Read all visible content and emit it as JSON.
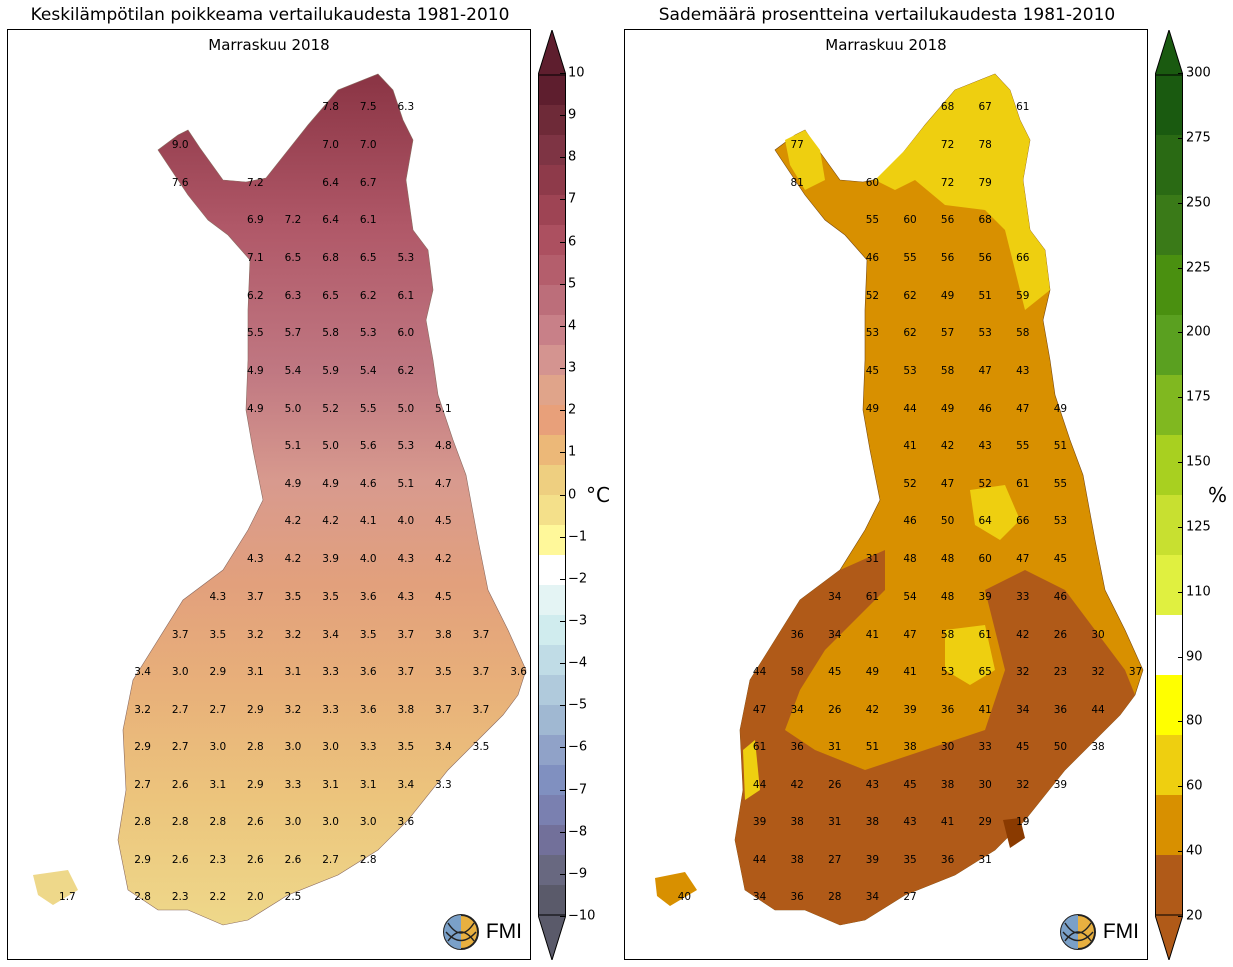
{
  "panels": [
    {
      "id": "temp",
      "title": "Keskilämpötilan poikkeama vertailukaudesta 1981-2010",
      "subtitle": "Marraskuu 2018",
      "logo_text": "FMI",
      "colorbar": {
        "unit": "°C",
        "ticks": [
          "10",
          "9",
          "8",
          "7",
          "6",
          "5",
          "4",
          "3",
          "2",
          "1",
          "0",
          "−1",
          "−2",
          "−3",
          "−4",
          "−5",
          "−6",
          "−7",
          "−8",
          "−9",
          "−10"
        ],
        "colors": {
          "warm_top": "#5e1e2e",
          "warm_mid": "#b85a6a",
          "warm_low": "#e8a07a",
          "yellow": "#fff89a",
          "white": "#ffffff",
          "cool_low": "#d8f0f0",
          "cool_mid": "#8090c0",
          "cool_bottom": "#5a5a6a"
        }
      },
      "values": [
        {
          "t": "7.8",
          "c": 1
        },
        {
          "t": "7.5",
          "c": 2
        },
        {
          "t": "6.3",
          "c": 3
        },
        {
          "t": "9.0",
          "c": -3
        },
        {
          "t": "7.0",
          "c": 1
        },
        {
          "t": "7.0",
          "c": 2
        },
        {
          "t": "7.6",
          "c": -3
        },
        {
          "t": "7.2",
          "c": -1
        },
        {
          "t": "6.4",
          "c": 1
        },
        {
          "t": "6.7",
          "c": 2
        },
        {
          "t": "6.9",
          "c": -1
        },
        {
          "t": "7.2",
          "c": 0
        },
        {
          "t": "6.4",
          "c": 1
        },
        {
          "t": "6.1",
          "c": 2
        },
        {
          "t": "7.1",
          "c": -1
        },
        {
          "t": "6.5",
          "c": 0
        },
        {
          "t": "6.8",
          "c": 1
        },
        {
          "t": "6.5",
          "c": 2
        },
        {
          "t": "5.3",
          "c": 3
        },
        {
          "t": "6.2",
          "c": -1
        },
        {
          "t": "6.3",
          "c": 0
        },
        {
          "t": "6.5",
          "c": 1
        },
        {
          "t": "6.2",
          "c": 2
        },
        {
          "t": "6.1",
          "c": 3
        },
        {
          "t": "5.5",
          "c": -1
        },
        {
          "t": "5.7",
          "c": 0
        },
        {
          "t": "5.8",
          "c": 1
        },
        {
          "t": "5.3",
          "c": 2
        },
        {
          "t": "6.0",
          "c": 3
        },
        {
          "t": "4.9",
          "c": -1
        },
        {
          "t": "5.4",
          "c": 0
        },
        {
          "t": "5.9",
          "c": 1
        },
        {
          "t": "5.4",
          "c": 2
        },
        {
          "t": "6.2",
          "c": 3
        },
        {
          "t": "4.9",
          "c": -1
        },
        {
          "t": "5.0",
          "c": 0
        },
        {
          "t": "5.2",
          "c": 1
        },
        {
          "t": "5.5",
          "c": 2
        },
        {
          "t": "5.0",
          "c": 3
        },
        {
          "t": "5.1",
          "c": 4
        },
        {
          "t": "5.1",
          "c": 0
        },
        {
          "t": "5.0",
          "c": 1
        },
        {
          "t": "5.6",
          "c": 2
        },
        {
          "t": "5.3",
          "c": 3
        },
        {
          "t": "4.8",
          "c": 4
        },
        {
          "t": "4.9",
          "c": 0
        },
        {
          "t": "4.9",
          "c": 1
        },
        {
          "t": "4.6",
          "c": 2
        },
        {
          "t": "5.1",
          "c": 3
        },
        {
          "t": "4.7",
          "c": 4
        },
        {
          "t": "4.2",
          "c": 0
        },
        {
          "t": "4.2",
          "c": 1
        },
        {
          "t": "4.1",
          "c": 2
        },
        {
          "t": "4.0",
          "c": 3
        },
        {
          "t": "4.5",
          "c": 4
        },
        {
          "t": "4.3",
          "c": -1
        },
        {
          "t": "4.2",
          "c": 0
        },
        {
          "t": "3.9",
          "c": 1
        },
        {
          "t": "4.0",
          "c": 2
        },
        {
          "t": "4.3",
          "c": 3
        },
        {
          "t": "4.2",
          "c": 4
        },
        {
          "t": "4.3",
          "c": -2
        },
        {
          "t": "3.7",
          "c": -1
        },
        {
          "t": "3.5",
          "c": 0
        },
        {
          "t": "3.5",
          "c": 1
        },
        {
          "t": "3.6",
          "c": 2
        },
        {
          "t": "4.3",
          "c": 3
        },
        {
          "t": "4.5",
          "c": 4
        },
        {
          "t": "3.7",
          "c": -3
        },
        {
          "t": "3.5",
          "c": -2
        },
        {
          "t": "3.2",
          "c": -1
        },
        {
          "t": "3.2",
          "c": 0
        },
        {
          "t": "3.4",
          "c": 1
        },
        {
          "t": "3.5",
          "c": 2
        },
        {
          "t": "3.7",
          "c": 3
        },
        {
          "t": "3.8",
          "c": 4
        },
        {
          "t": "3.7",
          "c": 5
        },
        {
          "t": "3.4",
          "c": -4
        },
        {
          "t": "3.0",
          "c": -3
        },
        {
          "t": "2.9",
          "c": -2
        },
        {
          "t": "3.1",
          "c": -1
        },
        {
          "t": "3.1",
          "c": 0
        },
        {
          "t": "3.3",
          "c": 1
        },
        {
          "t": "3.6",
          "c": 2
        },
        {
          "t": "3.7",
          "c": 3
        },
        {
          "t": "3.5",
          "c": 4
        },
        {
          "t": "3.7",
          "c": 5
        },
        {
          "t": "3.6",
          "c": 6
        },
        {
          "t": "3.2",
          "c": -4
        },
        {
          "t": "2.7",
          "c": -3
        },
        {
          "t": "2.7",
          "c": -2
        },
        {
          "t": "2.9",
          "c": -1
        },
        {
          "t": "3.2",
          "c": 0
        },
        {
          "t": "3.3",
          "c": 1
        },
        {
          "t": "3.6",
          "c": 2
        },
        {
          "t": "3.8",
          "c": 3
        },
        {
          "t": "3.7",
          "c": 4
        },
        {
          "t": "3.7",
          "c": 5
        },
        {
          "t": "2.9",
          "c": -4
        },
        {
          "t": "2.7",
          "c": -3
        },
        {
          "t": "3.0",
          "c": -2
        },
        {
          "t": "2.8",
          "c": -1
        },
        {
          "t": "3.0",
          "c": 0
        },
        {
          "t": "3.0",
          "c": 1
        },
        {
          "t": "3.3",
          "c": 2
        },
        {
          "t": "3.5",
          "c": 3
        },
        {
          "t": "3.4",
          "c": 4
        },
        {
          "t": "3.5",
          "c": 5
        },
        {
          "t": "2.7",
          "c": -4
        },
        {
          "t": "2.6",
          "c": -3
        },
        {
          "t": "3.1",
          "c": -2
        },
        {
          "t": "2.9",
          "c": -1
        },
        {
          "t": "3.3",
          "c": 0
        },
        {
          "t": "3.1",
          "c": 1
        },
        {
          "t": "3.1",
          "c": 2
        },
        {
          "t": "3.4",
          "c": 3
        },
        {
          "t": "3.3",
          "c": 4
        },
        {
          "t": "2.8",
          "c": -4
        },
        {
          "t": "2.8",
          "c": -3
        },
        {
          "t": "2.8",
          "c": -2
        },
        {
          "t": "2.6",
          "c": -1
        },
        {
          "t": "3.0",
          "c": 0
        },
        {
          "t": "3.0",
          "c": 1
        },
        {
          "t": "3.0",
          "c": 2
        },
        {
          "t": "3.6",
          "c": 3
        },
        {
          "t": "2.9",
          "c": -4
        },
        {
          "t": "2.6",
          "c": -3
        },
        {
          "t": "2.3",
          "c": -2
        },
        {
          "t": "2.6",
          "c": -1
        },
        {
          "t": "2.6",
          "c": 0
        },
        {
          "t": "2.7",
          "c": 1
        },
        {
          "t": "2.8",
          "c": 2
        },
        {
          "t": "1.7",
          "c": -6
        },
        {
          "t": "2.8",
          "c": -4
        },
        {
          "t": "2.3",
          "c": -3
        },
        {
          "t": "2.2",
          "c": -2
        },
        {
          "t": "2.0",
          "c": -1
        },
        {
          "t": "2.5",
          "c": 0
        }
      ]
    },
    {
      "id": "precip",
      "title": "Sademäärä prosentteina vertailukaudesta 1981-2010",
      "subtitle": "Marraskuu 2018",
      "logo_text": "FMI",
      "colorbar": {
        "unit": "%",
        "ticks": [
          "300",
          "275",
          "250",
          "225",
          "200",
          "175",
          "150",
          "125",
          "110",
          "90",
          "80",
          "60",
          "40",
          "20"
        ],
        "colors": {
          "dark_green": "#1a5a10",
          "mid_green": "#5aa020",
          "yellow_green": "#e0f040",
          "white": "#ffffff",
          "yellow": "#ffff00",
          "gold": "#eecf10",
          "orange": "#d89000",
          "brown": "#b05a18",
          "dark_brown": "#8a3a00"
        }
      },
      "values": [
        {
          "t": "68",
          "c": 1
        },
        {
          "t": "67",
          "c": 2
        },
        {
          "t": "61",
          "c": 3
        },
        {
          "t": "77",
          "c": -3
        },
        {
          "t": "72",
          "c": 1
        },
        {
          "t": "78",
          "c": 2
        },
        {
          "t": "81",
          "c": -3
        },
        {
          "t": "60",
          "c": -1
        },
        {
          "t": "72",
          "c": 1
        },
        {
          "t": "79",
          "c": 2
        },
        {
          "t": "55",
          "c": -1
        },
        {
          "t": "60",
          "c": 0
        },
        {
          "t": "56",
          "c": 1
        },
        {
          "t": "68",
          "c": 2
        },
        {
          "t": "46",
          "c": -1
        },
        {
          "t": "55",
          "c": 0
        },
        {
          "t": "56",
          "c": 1
        },
        {
          "t": "56",
          "c": 2
        },
        {
          "t": "66",
          "c": 3
        },
        {
          "t": "52",
          "c": -1
        },
        {
          "t": "62",
          "c": 0
        },
        {
          "t": "49",
          "c": 1
        },
        {
          "t": "51",
          "c": 2
        },
        {
          "t": "59",
          "c": 3
        },
        {
          "t": "53",
          "c": -1
        },
        {
          "t": "62",
          "c": 0
        },
        {
          "t": "57",
          "c": 1
        },
        {
          "t": "53",
          "c": 2
        },
        {
          "t": "58",
          "c": 3
        },
        {
          "t": "45",
          "c": -1
        },
        {
          "t": "53",
          "c": 0
        },
        {
          "t": "58",
          "c": 1
        },
        {
          "t": "47",
          "c": 2
        },
        {
          "t": "43",
          "c": 3
        },
        {
          "t": "49",
          "c": -1
        },
        {
          "t": "44",
          "c": 0
        },
        {
          "t": "49",
          "c": 1
        },
        {
          "t": "46",
          "c": 2
        },
        {
          "t": "47",
          "c": 3
        },
        {
          "t": "49",
          "c": 4
        },
        {
          "t": "41",
          "c": 0
        },
        {
          "t": "42",
          "c": 1
        },
        {
          "t": "43",
          "c": 2
        },
        {
          "t": "55",
          "c": 3
        },
        {
          "t": "51",
          "c": 4
        },
        {
          "t": "52",
          "c": 0
        },
        {
          "t": "47",
          "c": 1
        },
        {
          "t": "52",
          "c": 2
        },
        {
          "t": "61",
          "c": 3
        },
        {
          "t": "55",
          "c": 4
        },
        {
          "t": "46",
          "c": 0
        },
        {
          "t": "50",
          "c": 1
        },
        {
          "t": "64",
          "c": 2
        },
        {
          "t": "66",
          "c": 3
        },
        {
          "t": "53",
          "c": 4
        },
        {
          "t": "31",
          "c": -1
        },
        {
          "t": "48",
          "c": 0
        },
        {
          "t": "48",
          "c": 1
        },
        {
          "t": "60",
          "c": 2
        },
        {
          "t": "47",
          "c": 3
        },
        {
          "t": "45",
          "c": 4
        },
        {
          "t": "34",
          "c": -2
        },
        {
          "t": "61",
          "c": -1
        },
        {
          "t": "54",
          "c": 0
        },
        {
          "t": "48",
          "c": 1
        },
        {
          "t": "39",
          "c": 2
        },
        {
          "t": "33",
          "c": 3
        },
        {
          "t": "46",
          "c": 4
        },
        {
          "t": "36",
          "c": -3
        },
        {
          "t": "34",
          "c": -2
        },
        {
          "t": "41",
          "c": -1
        },
        {
          "t": "47",
          "c": 0
        },
        {
          "t": "58",
          "c": 1
        },
        {
          "t": "61",
          "c": 2
        },
        {
          "t": "42",
          "c": 3
        },
        {
          "t": "26",
          "c": 4
        },
        {
          "t": "30",
          "c": 5
        },
        {
          "t": "44",
          "c": -4
        },
        {
          "t": "58",
          "c": -3
        },
        {
          "t": "45",
          "c": -2
        },
        {
          "t": "49",
          "c": -1
        },
        {
          "t": "41",
          "c": 0
        },
        {
          "t": "53",
          "c": 1
        },
        {
          "t": "65",
          "c": 2
        },
        {
          "t": "32",
          "c": 3
        },
        {
          "t": "23",
          "c": 4
        },
        {
          "t": "32",
          "c": 5
        },
        {
          "t": "37",
          "c": 6
        },
        {
          "t": "47",
          "c": -4
        },
        {
          "t": "34",
          "c": -3
        },
        {
          "t": "26",
          "c": -2
        },
        {
          "t": "42",
          "c": -1
        },
        {
          "t": "39",
          "c": 0
        },
        {
          "t": "36",
          "c": 1
        },
        {
          "t": "41",
          "c": 2
        },
        {
          "t": "34",
          "c": 3
        },
        {
          "t": "36",
          "c": 4
        },
        {
          "t": "44",
          "c": 5
        },
        {
          "t": "61",
          "c": -4
        },
        {
          "t": "36",
          "c": -3
        },
        {
          "t": "31",
          "c": -2
        },
        {
          "t": "51",
          "c": -1
        },
        {
          "t": "38",
          "c": 0
        },
        {
          "t": "30",
          "c": 1
        },
        {
          "t": "33",
          "c": 2
        },
        {
          "t": "45",
          "c": 3
        },
        {
          "t": "50",
          "c": 4
        },
        {
          "t": "38",
          "c": 5
        },
        {
          "t": "44",
          "c": -4
        },
        {
          "t": "42",
          "c": -3
        },
        {
          "t": "26",
          "c": -2
        },
        {
          "t": "43",
          "c": -1
        },
        {
          "t": "45",
          "c": 0
        },
        {
          "t": "38",
          "c": 1
        },
        {
          "t": "30",
          "c": 2
        },
        {
          "t": "32",
          "c": 3
        },
        {
          "t": "39",
          "c": 4
        },
        {
          "t": "39",
          "c": -4
        },
        {
          "t": "38",
          "c": -3
        },
        {
          "t": "31",
          "c": -2
        },
        {
          "t": "38",
          "c": -1
        },
        {
          "t": "43",
          "c": 0
        },
        {
          "t": "41",
          "c": 1
        },
        {
          "t": "29",
          "c": 2
        },
        {
          "t": "19",
          "c": 3
        },
        {
          "t": "44",
          "c": -4
        },
        {
          "t": "38",
          "c": -3
        },
        {
          "t": "27",
          "c": -2
        },
        {
          "t": "39",
          "c": -1
        },
        {
          "t": "35",
          "c": 0
        },
        {
          "t": "36",
          "c": 1
        },
        {
          "t": "31",
          "c": 2
        },
        {
          "t": "40",
          "c": -6
        },
        {
          "t": "34",
          "c": -4
        },
        {
          "t": "36",
          "c": -3
        },
        {
          "t": "28",
          "c": -2
        },
        {
          "t": "34",
          "c": -1
        },
        {
          "t": "27",
          "c": 0
        }
      ]
    }
  ]
}
